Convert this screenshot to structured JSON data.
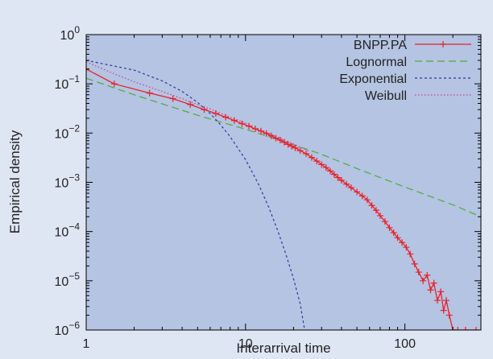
{
  "chart_data": {
    "type": "line",
    "title": "",
    "xlabel": "Interarrival time",
    "ylabel": "Empirical density",
    "xscale": "log",
    "yscale": "log",
    "xlim": [
      1,
      300
    ],
    "ylim": [
      1e-06,
      1
    ],
    "x_ticks": [
      {
        "value": 1,
        "label": "1"
      },
      {
        "value": 10,
        "label": "10"
      },
      {
        "value": 100,
        "label": "100"
      }
    ],
    "y_ticks": [
      {
        "value": 1e-06,
        "base": "10",
        "exp": "−6"
      },
      {
        "value": 1e-05,
        "base": "10",
        "exp": "−5"
      },
      {
        "value": 0.0001,
        "base": "10",
        "exp": "−4"
      },
      {
        "value": 0.001,
        "base": "10",
        "exp": "−3"
      },
      {
        "value": 0.01,
        "base": "10",
        "exp": "−2"
      },
      {
        "value": 0.1,
        "base": "10",
        "exp": "−1"
      },
      {
        "value": 1,
        "base": "10",
        "exp": "0"
      }
    ],
    "grid": false,
    "legend_position": "top-right",
    "series": [
      {
        "name": "BNPP.PA",
        "color": "#e8202a",
        "style": "solid-with-plus-markers",
        "points": [
          [
            1,
            0.2
          ],
          [
            1.5,
            0.1
          ],
          [
            2.5,
            0.065
          ],
          [
            3.5,
            0.05
          ],
          [
            4.5,
            0.038
          ],
          [
            5.5,
            0.03
          ],
          [
            6.5,
            0.025
          ],
          [
            7.5,
            0.021
          ],
          [
            8.5,
            0.018
          ],
          [
            9.5,
            0.0155
          ],
          [
            10.5,
            0.0138
          ],
          [
            11.5,
            0.0122
          ],
          [
            12.5,
            0.011
          ],
          [
            13.5,
            0.0098
          ],
          [
            14.5,
            0.0088
          ],
          [
            15.5,
            0.0079
          ],
          [
            16.5,
            0.0072
          ],
          [
            17.5,
            0.0065
          ],
          [
            18.5,
            0.0059
          ],
          [
            19.5,
            0.0054
          ],
          [
            20.5,
            0.005
          ],
          [
            22,
            0.0044
          ],
          [
            24,
            0.0038
          ],
          [
            26,
            0.0032
          ],
          [
            28,
            0.0027
          ],
          [
            30,
            0.0023
          ],
          [
            32,
            0.002
          ],
          [
            34,
            0.0017
          ],
          [
            36,
            0.00145
          ],
          [
            38,
            0.00125
          ],
          [
            40,
            0.0011
          ],
          [
            43,
            0.00092
          ],
          [
            46,
            0.00078
          ],
          [
            50,
            0.00064
          ],
          [
            54,
            0.00053
          ],
          [
            58,
            0.00044
          ],
          [
            62,
            0.00034
          ],
          [
            66,
            0.00027
          ],
          [
            70,
            0.00021
          ],
          [
            75,
            0.00016
          ],
          [
            80,
            0.00012
          ],
          [
            85,
            9.5e-05
          ],
          [
            90,
            7.5e-05
          ],
          [
            96,
            6e-05
          ],
          [
            102,
            4.8e-05
          ],
          [
            108,
            3.5e-05
          ],
          [
            115,
            2.2e-05
          ],
          [
            122,
            1.5e-05
          ],
          [
            130,
            1e-05
          ],
          [
            138,
            1.3e-05
          ],
          [
            145,
            6.5e-06
          ],
          [
            152,
            9e-06
          ],
          [
            160,
            4e-06
          ],
          [
            168,
            6e-06
          ],
          [
            175,
            2.5e-06
          ],
          [
            182,
            4e-06
          ],
          [
            190,
            2e-06
          ],
          [
            200,
            1e-06
          ],
          [
            215,
            1e-06
          ],
          [
            240,
            1e-06
          ],
          [
            280,
            1e-06
          ]
        ]
      },
      {
        "name": "Lognormal",
        "color": "#4dab3a",
        "style": "long-dash",
        "points": [
          [
            1,
            0.13
          ],
          [
            2,
            0.06
          ],
          [
            5,
            0.023
          ],
          [
            10,
            0.012
          ],
          [
            20,
            0.0058
          ],
          [
            30,
            0.0037
          ],
          [
            50,
            0.0019
          ],
          [
            100,
            0.0008
          ],
          [
            200,
            0.00035
          ],
          [
            300,
            0.0002
          ]
        ]
      },
      {
        "name": "Exponential",
        "color": "#2b3a9b",
        "style": "short-dash",
        "points": [
          [
            1,
            0.3
          ],
          [
            2,
            0.19
          ],
          [
            3,
            0.115
          ],
          [
            4,
            0.07
          ],
          [
            5,
            0.042
          ],
          [
            6,
            0.025
          ],
          [
            7,
            0.0145
          ],
          [
            8,
            0.0085
          ],
          [
            10,
            0.0029
          ],
          [
            12,
            0.00095
          ],
          [
            14,
            0.00031
          ],
          [
            16,
            0.0001
          ],
          [
            18,
            3.3e-05
          ],
          [
            20,
            1.1e-05
          ],
          [
            22,
            3.5e-06
          ],
          [
            23.5,
            1e-06
          ]
        ]
      },
      {
        "name": "Weibull",
        "color": "#cc3b8f",
        "style": "dotted",
        "points": [
          [
            1,
            0.28
          ],
          [
            1.5,
            0.16
          ],
          [
            2,
            0.11
          ],
          [
            3,
            0.07
          ],
          [
            4,
            0.05
          ],
          [
            5,
            0.038
          ],
          [
            6,
            0.031
          ],
          [
            8,
            0.021
          ],
          [
            10,
            0.016
          ],
          [
            15,
            0.009
          ],
          [
            20,
            0.006
          ],
          [
            25,
            0.0043
          ]
        ]
      }
    ]
  }
}
